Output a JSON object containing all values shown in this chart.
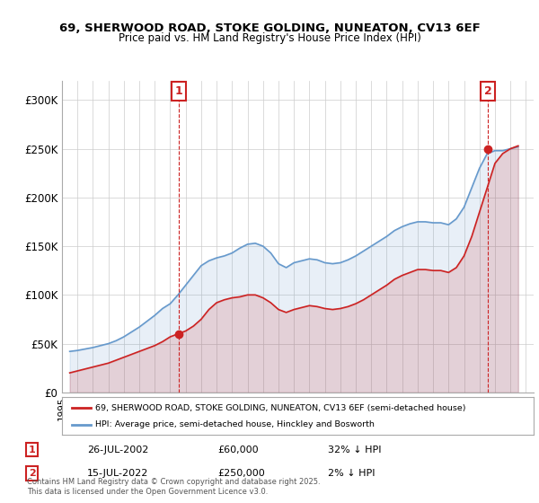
{
  "title_line1": "69, SHERWOOD ROAD, STOKE GOLDING, NUNEATON, CV13 6EF",
  "title_line2": "Price paid vs. HM Land Registry's House Price Index (HPI)",
  "ylabel": "",
  "background_color": "#ffffff",
  "grid_color": "#cccccc",
  "hpi_color": "#6699cc",
  "price_color": "#cc2222",
  "marker_color": "#cc2222",
  "annotation_box_color": "#cc2222",
  "ylim": [
    0,
    320000
  ],
  "yticks": [
    0,
    50000,
    100000,
    150000,
    200000,
    250000,
    300000
  ],
  "ytick_labels": [
    "£0",
    "£50K",
    "£100K",
    "£150K",
    "£200K",
    "£250K",
    "£300K"
  ],
  "sale1_date": "26-JUL-2002",
  "sale1_price": 60000,
  "sale1_label": "1",
  "sale1_hpi_diff": "32% ↓ HPI",
  "sale2_date": "15-JUL-2022",
  "sale2_price": 250000,
  "sale2_label": "2",
  "sale2_hpi_diff": "2% ↓ HPI",
  "legend_line1": "69, SHERWOOD ROAD, STOKE GOLDING, NUNEATON, CV13 6EF (semi-detached house)",
  "legend_line2": "HPI: Average price, semi-detached house, Hinckley and Bosworth",
  "footer": "Contains HM Land Registry data © Crown copyright and database right 2025.\nThis data is licensed under the Open Government Licence v3.0.",
  "hpi_x": [
    1995.5,
    1996.0,
    1996.5,
    1997.0,
    1997.5,
    1998.0,
    1998.5,
    1999.0,
    1999.5,
    2000.0,
    2000.5,
    2001.0,
    2001.5,
    2002.0,
    2002.5,
    2003.0,
    2003.5,
    2004.0,
    2004.5,
    2005.0,
    2005.5,
    2006.0,
    2006.5,
    2007.0,
    2007.5,
    2008.0,
    2008.5,
    2009.0,
    2009.5,
    2010.0,
    2010.5,
    2011.0,
    2011.5,
    2012.0,
    2012.5,
    2013.0,
    2013.5,
    2014.0,
    2014.5,
    2015.0,
    2015.5,
    2016.0,
    2016.5,
    2017.0,
    2017.5,
    2018.0,
    2018.5,
    2019.0,
    2019.5,
    2020.0,
    2020.5,
    2021.0,
    2021.5,
    2022.0,
    2022.5,
    2023.0,
    2023.5,
    2024.0,
    2024.5
  ],
  "hpi_y": [
    42000,
    43000,
    44500,
    46000,
    48000,
    50000,
    53000,
    57000,
    62000,
    67000,
    73000,
    79000,
    86000,
    91000,
    100000,
    110000,
    120000,
    130000,
    135000,
    138000,
    140000,
    143000,
    148000,
    152000,
    153000,
    150000,
    143000,
    132000,
    128000,
    133000,
    135000,
    137000,
    136000,
    133000,
    132000,
    133000,
    136000,
    140000,
    145000,
    150000,
    155000,
    160000,
    166000,
    170000,
    173000,
    175000,
    175000,
    174000,
    174000,
    172000,
    178000,
    190000,
    210000,
    230000,
    245000,
    248000,
    248000,
    250000,
    252000
  ],
  "price_x": [
    1995.5,
    1996.0,
    1996.5,
    1997.0,
    1997.5,
    1998.0,
    1998.5,
    1999.0,
    1999.5,
    2000.0,
    2000.5,
    2001.0,
    2001.5,
    2002.0,
    2002.5,
    2003.0,
    2003.5,
    2004.0,
    2004.5,
    2005.0,
    2005.5,
    2006.0,
    2006.5,
    2007.0,
    2007.5,
    2008.0,
    2008.5,
    2009.0,
    2009.5,
    2010.0,
    2010.5,
    2011.0,
    2011.5,
    2012.0,
    2012.5,
    2013.0,
    2013.5,
    2014.0,
    2014.5,
    2015.0,
    2015.5,
    2016.0,
    2016.5,
    2017.0,
    2017.5,
    2018.0,
    2018.5,
    2019.0,
    2019.5,
    2020.0,
    2020.5,
    2021.0,
    2021.5,
    2022.0,
    2022.5,
    2023.0,
    2023.5,
    2024.0,
    2024.5
  ],
  "price_y": [
    20000,
    22000,
    24000,
    26000,
    28000,
    30000,
    33000,
    36000,
    39000,
    42000,
    45000,
    48000,
    52000,
    57000,
    60000,
    63000,
    68000,
    75000,
    85000,
    92000,
    95000,
    97000,
    98000,
    100000,
    100000,
    97000,
    92000,
    85000,
    82000,
    85000,
    87000,
    89000,
    88000,
    86000,
    85000,
    86000,
    88000,
    91000,
    95000,
    100000,
    105000,
    110000,
    116000,
    120000,
    123000,
    126000,
    126000,
    125000,
    125000,
    123000,
    128000,
    140000,
    160000,
    185000,
    210000,
    235000,
    245000,
    250000,
    253000
  ],
  "sale1_x": 2002.54,
  "sale1_y": 60000,
  "sale2_x": 2022.54,
  "sale2_y": 250000,
  "xmin": 1995.0,
  "xmax": 2025.5
}
